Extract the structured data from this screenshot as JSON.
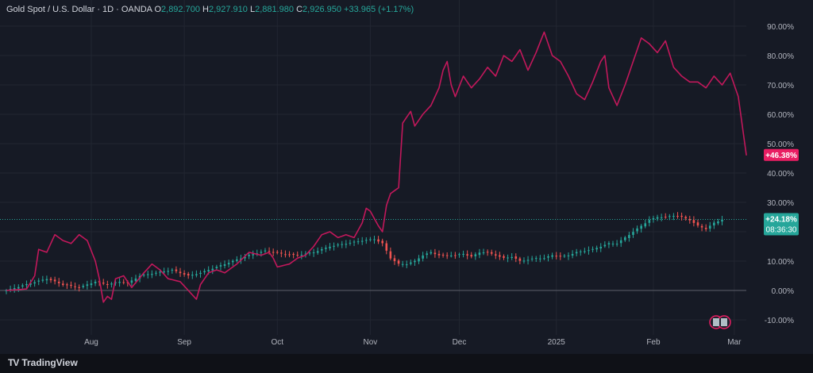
{
  "legend": {
    "symbol": "Gold Spot / U.S. Dollar · 1D · OANDA",
    "o_label": "O",
    "o_value": "2,892.700",
    "h_label": "H",
    "h_value": "2,927.910",
    "l_label": "L",
    "l_value": "2,881.980",
    "c_label": "C",
    "c_value": "2,926.950",
    "change": "+33.965 (+1.17%)"
  },
  "footer": {
    "brand": "TradingView",
    "logo": "TV"
  },
  "colors": {
    "background": "#161a25",
    "grid": "#222631",
    "axis_text": "#b2b5be",
    "compare_line": "#c2185b",
    "compare_badge": "#e91e63",
    "up": "#26a69a",
    "down": "#ef5350",
    "zero_line": "#5d606b"
  },
  "chart_data": {
    "type": "line",
    "title": "Gold Spot / U.S. Dollar · 1D · OANDA",
    "xlabel": "",
    "ylabel": "",
    "y_unit": "%",
    "ylim": [
      -12,
      97
    ],
    "y_ticks": [
      -10,
      0,
      10,
      20,
      30,
      40,
      50,
      60,
      70,
      80,
      90
    ],
    "y_tick_labels": [
      "-10.00%",
      "0.00%",
      "10.00%",
      "20.00%",
      "30.00%",
      "40.00%",
      "50.00%",
      "60.00%",
      "70.00%",
      "80.00%",
      "90.00%"
    ],
    "x_tick_labels": [
      "Aug",
      "Sep",
      "Oct",
      "Nov",
      "Dec",
      "2025",
      "Feb",
      "Mar"
    ],
    "x_tick_index": [
      21,
      44,
      67,
      90,
      112,
      136,
      160,
      180
    ],
    "grid": true,
    "x_count": 183,
    "badges": {
      "compare_last": "+46.38%",
      "gold_last": "+24.18%",
      "countdown": "08:36:30"
    },
    "series": [
      {
        "kind": "line",
        "knots": [
          [
            0,
            0
          ],
          [
            5,
            0.5
          ],
          [
            7,
            5
          ],
          [
            8,
            14
          ],
          [
            10,
            13
          ],
          [
            12,
            19
          ],
          [
            14,
            17
          ],
          [
            16,
            16
          ],
          [
            18,
            19
          ],
          [
            20,
            17
          ],
          [
            22,
            10
          ],
          [
            23,
            4
          ],
          [
            24,
            -4
          ],
          [
            25,
            -2
          ],
          [
            26,
            -3
          ],
          [
            27,
            4
          ],
          [
            29,
            5
          ],
          [
            31,
            1
          ],
          [
            34,
            6
          ],
          [
            36,
            9
          ],
          [
            38,
            7
          ],
          [
            40,
            4
          ],
          [
            43,
            3
          ],
          [
            45,
            0
          ],
          [
            47,
            -3
          ],
          [
            48,
            2
          ],
          [
            50,
            6
          ],
          [
            52,
            7
          ],
          [
            54,
            6
          ],
          [
            57,
            9
          ],
          [
            60,
            13
          ],
          [
            63,
            12
          ],
          [
            65,
            13
          ],
          [
            66,
            11
          ],
          [
            67,
            8
          ],
          [
            70,
            9
          ],
          [
            72,
            11
          ],
          [
            74,
            12
          ],
          [
            76,
            15
          ],
          [
            78,
            19
          ],
          [
            80,
            20
          ],
          [
            82,
            18
          ],
          [
            84,
            19
          ],
          [
            86,
            18
          ],
          [
            88,
            23
          ],
          [
            89,
            28
          ],
          [
            90,
            27
          ],
          [
            92,
            22
          ],
          [
            93,
            20
          ],
          [
            94,
            29
          ],
          [
            95,
            33
          ],
          [
            97,
            35
          ],
          [
            98,
            57
          ],
          [
            100,
            61
          ],
          [
            101,
            56
          ],
          [
            103,
            60
          ],
          [
            105,
            63
          ],
          [
            107,
            69
          ],
          [
            108,
            75
          ],
          [
            109,
            78
          ],
          [
            110,
            70
          ],
          [
            111,
            66
          ],
          [
            113,
            73
          ],
          [
            115,
            69
          ],
          [
            117,
            72
          ],
          [
            119,
            76
          ],
          [
            121,
            73
          ],
          [
            123,
            80
          ],
          [
            125,
            78
          ],
          [
            127,
            82
          ],
          [
            129,
            75
          ],
          [
            131,
            81
          ],
          [
            133,
            88
          ],
          [
            135,
            80
          ],
          [
            137,
            78
          ],
          [
            139,
            73
          ],
          [
            141,
            67
          ],
          [
            143,
            65
          ],
          [
            145,
            71
          ],
          [
            147,
            78
          ],
          [
            148,
            80
          ],
          [
            149,
            69
          ],
          [
            151,
            63
          ],
          [
            153,
            70
          ],
          [
            155,
            78
          ],
          [
            157,
            86
          ],
          [
            159,
            84
          ],
          [
            161,
            81
          ],
          [
            163,
            85
          ],
          [
            165,
            76
          ],
          [
            167,
            73
          ],
          [
            169,
            71
          ],
          [
            171,
            71
          ],
          [
            173,
            69
          ],
          [
            175,
            73
          ],
          [
            177,
            70
          ],
          [
            179,
            74
          ],
          [
            181,
            66
          ],
          [
            183,
            46
          ]
        ],
        "values_note": ""
      },
      {
        "kind": "candlestick",
        "knots": [
          [
            0,
            0
          ],
          [
            6,
            2.5
          ],
          [
            10,
            4
          ],
          [
            14,
            2
          ],
          [
            18,
            1
          ],
          [
            22,
            3
          ],
          [
            25,
            2
          ],
          [
            28,
            3
          ],
          [
            30,
            2.5
          ],
          [
            33,
            5
          ],
          [
            37,
            6
          ],
          [
            41,
            7
          ],
          [
            45,
            5
          ],
          [
            48,
            6
          ],
          [
            52,
            8
          ],
          [
            56,
            10
          ],
          [
            60,
            12
          ],
          [
            64,
            13.5
          ],
          [
            68,
            12.5
          ],
          [
            72,
            12
          ],
          [
            76,
            13
          ],
          [
            80,
            15
          ],
          [
            84,
            16
          ],
          [
            88,
            17
          ],
          [
            91,
            17.5
          ],
          [
            93,
            16
          ],
          [
            95,
            11
          ],
          [
            97,
            9
          ],
          [
            99,
            9
          ],
          [
            101,
            10
          ],
          [
            103,
            12
          ],
          [
            105,
            13
          ],
          [
            107,
            12
          ],
          [
            109,
            12
          ],
          [
            111,
            12
          ],
          [
            113,
            12.5
          ],
          [
            115,
            11.5
          ],
          [
            117,
            13
          ],
          [
            119,
            13
          ],
          [
            121,
            12
          ],
          [
            123,
            11
          ],
          [
            125,
            11.5
          ],
          [
            127,
            10
          ],
          [
            129,
            10.5
          ],
          [
            131,
            11
          ],
          [
            133,
            11
          ],
          [
            135,
            12
          ],
          [
            137,
            11.5
          ],
          [
            139,
            12
          ],
          [
            141,
            13
          ],
          [
            143,
            13.5
          ],
          [
            145,
            14
          ],
          [
            147,
            15
          ],
          [
            149,
            16
          ],
          [
            151,
            16
          ],
          [
            153,
            18
          ],
          [
            155,
            20
          ],
          [
            157,
            22
          ],
          [
            159,
            24
          ],
          [
            161,
            25
          ],
          [
            163,
            25
          ],
          [
            165,
            25.5
          ],
          [
            167,
            25
          ],
          [
            169,
            24
          ],
          [
            171,
            22
          ],
          [
            173,
            21
          ],
          [
            175,
            23
          ],
          [
            177,
            24.2
          ]
        ]
      }
    ]
  }
}
